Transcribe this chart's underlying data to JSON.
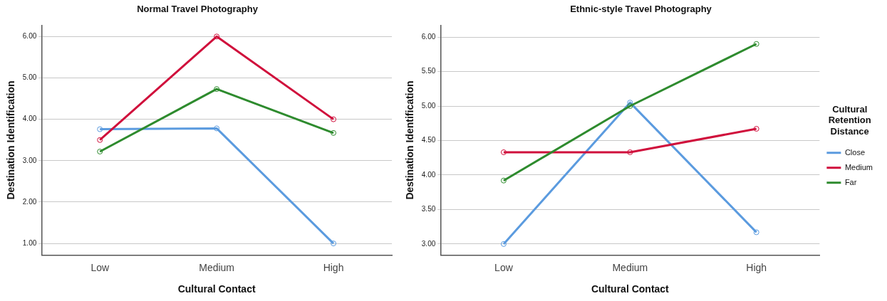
{
  "chart_data": [
    {
      "type": "line",
      "title": "Normal Travel Photography",
      "xlabel": "Cultural Contact",
      "ylabel": "Destination Identification",
      "categories": [
        "Low",
        "Medium",
        "High"
      ],
      "series": [
        {
          "color": "#5b9bdf",
          "values": [
            3.76,
            3.78,
            1.0
          ]
        },
        {
          "color": "#d0103c",
          "values": [
            3.5,
            6.0,
            4.0
          ]
        },
        {
          "color": "#2e8b2e",
          "values": [
            3.22,
            4.73,
            3.67
          ]
        }
      ],
      "ylim": [
        0.72,
        6.27
      ],
      "yticks": [
        {
          "value": 1,
          "label": "1.00"
        },
        {
          "value": 2,
          "label": "2.00"
        },
        {
          "value": 3,
          "label": "3.00"
        },
        {
          "value": 4,
          "label": "4.00"
        },
        {
          "value": 5,
          "label": "5.00"
        },
        {
          "value": 6,
          "label": "6.00"
        }
      ],
      "grid": "y",
      "marker": "circle",
      "line_style": "solid",
      "legend": false
    },
    {
      "type": "line",
      "title": "Ethnic-style Travel Photography",
      "xlabel": "Cultural Contact",
      "ylabel": "Destination Identification",
      "legend_title": "Cultural Retention Distance",
      "categories": [
        "Low",
        "Medium",
        "High"
      ],
      "series": [
        {
          "name": "Close",
          "color": "#5b9bdf",
          "values": [
            3.0,
            5.05,
            3.17
          ]
        },
        {
          "name": "Medium",
          "color": "#d0103c",
          "values": [
            4.33,
            4.33,
            4.67
          ]
        },
        {
          "name": "Far",
          "color": "#2e8b2e",
          "values": [
            3.92,
            5.0,
            5.9
          ]
        }
      ],
      "ylim": [
        2.84,
        6.17
      ],
      "yticks": [
        {
          "value": 3,
          "label": "3.00"
        },
        {
          "value": 3.5,
          "label": "3.50"
        },
        {
          "value": 4,
          "label": "4.00"
        },
        {
          "value": 4.5,
          "label": "4.50"
        },
        {
          "value": 5,
          "label": "5.00"
        },
        {
          "value": 5.5,
          "label": "5.50"
        },
        {
          "value": 6,
          "label": "6.00"
        }
      ],
      "grid": "y",
      "marker": "circle",
      "line_style": "solid",
      "legend": "right"
    }
  ]
}
